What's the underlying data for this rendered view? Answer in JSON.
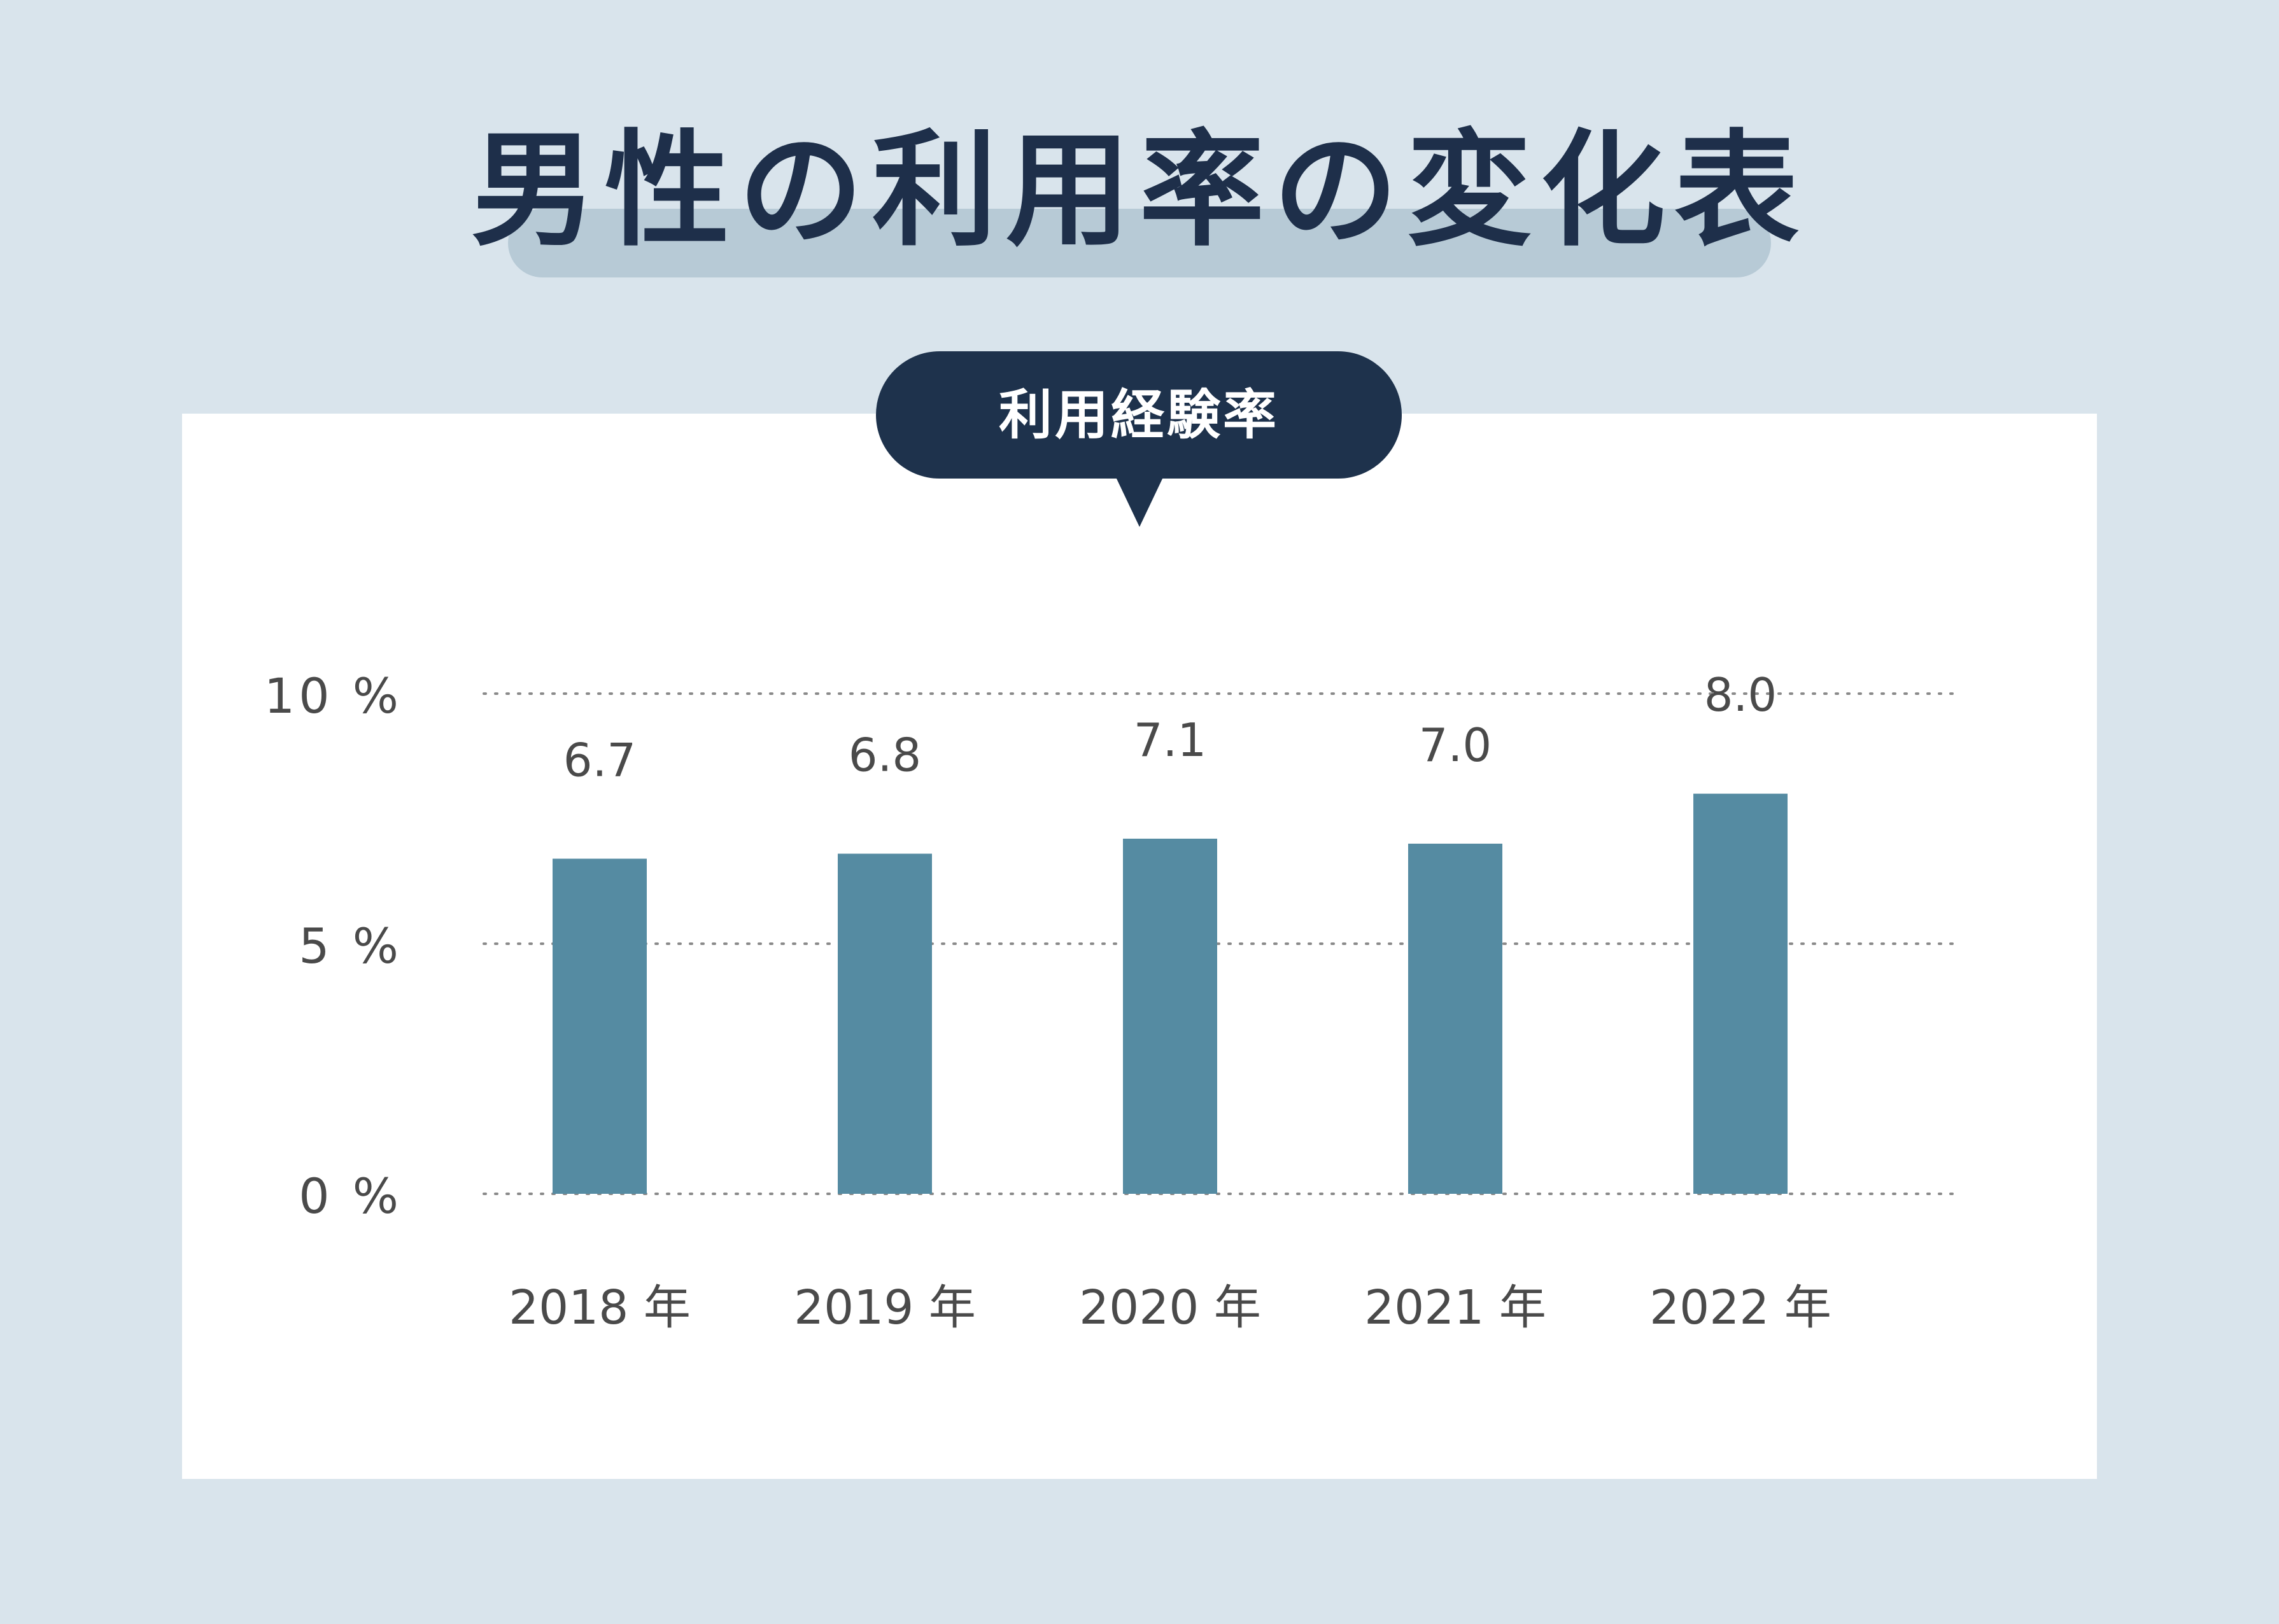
{
  "page": {
    "title": "男性の利用率の変化表",
    "badge": "利用経験率"
  },
  "colors": {
    "background": "#d9e4ec",
    "title_band": "#b7cad6",
    "pill": "#1e324c",
    "bar": "#558ba2",
    "text": "#4a4a4a"
  },
  "chart_data": {
    "type": "bar",
    "categories": [
      "2018 年",
      "2019 年",
      "2020 年",
      "2021 年",
      "2022 年"
    ],
    "values": [
      6.7,
      6.8,
      7.1,
      7.0,
      8.0
    ],
    "value_labels": [
      "6.7",
      "6.8",
      "7.1",
      "7.0",
      "8.0"
    ],
    "ylim": [
      0,
      10
    ],
    "yticks": [
      0,
      5,
      10
    ],
    "ytick_labels": [
      "0 %",
      "5 %",
      "10 %"
    ],
    "grid": "dotted horizontal",
    "legend": "none"
  }
}
